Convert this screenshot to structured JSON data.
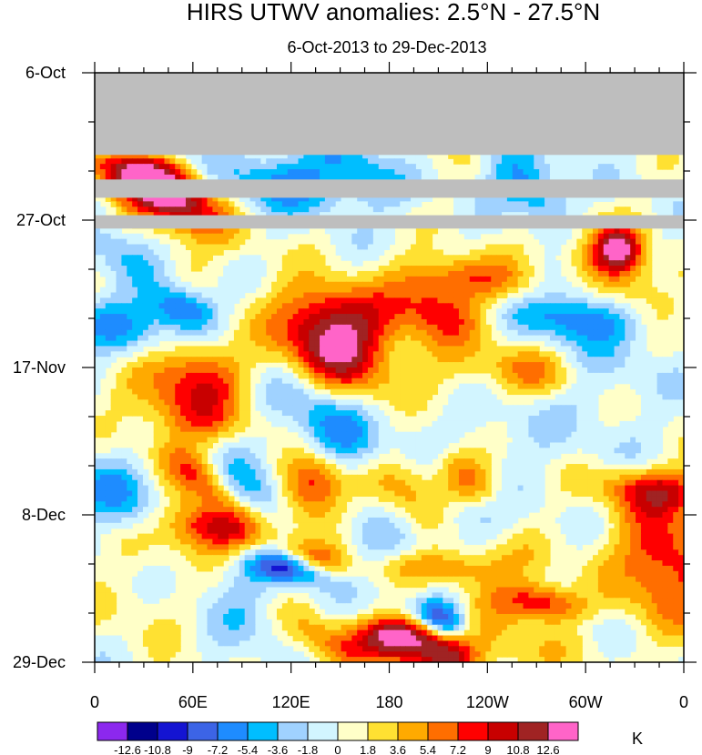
{
  "chart_data": {
    "type": "heatmap",
    "title": "HIRS UTWV anomalies: 2.5°N - 27.5°N",
    "subtitle": "6-Oct-2013 to 29-Dec-2013",
    "xlabel": "",
    "ylabel": "",
    "x_ticks": [
      "0",
      "60E",
      "120E",
      "180",
      "120W",
      "60W",
      "0"
    ],
    "x_range_deg_east": [
      0,
      360
    ],
    "y_ticks": [
      "6-Oct",
      "27-Oct",
      "17-Nov",
      "8-Dec",
      "29-Dec"
    ],
    "y_range_days": [
      0,
      84
    ],
    "missing_data_color": "#bebebe",
    "missing_periods_days": [
      [
        0,
        11.7
      ],
      [
        15.2,
        17.8
      ],
      [
        20.3,
        22.2
      ]
    ],
    "colorbar": {
      "unit": "K",
      "levels": [
        "-12.6",
        "-10.8",
        "-9",
        "-7.2",
        "-5.4",
        "-3.6",
        "-1.8",
        "0",
        "1.8",
        "3.6",
        "5.4",
        "7.2",
        "9",
        "10.8",
        "12.6"
      ],
      "colors": [
        "#8c28ee",
        "#00008c",
        "#1414d2",
        "#3c64e6",
        "#1e8cff",
        "#00beff",
        "#a0d2ff",
        "#d2f5ff",
        "#ffffc8",
        "#ffe132",
        "#ffaa00",
        "#ff6e00",
        "#ff0000",
        "#c80000",
        "#a02323",
        "#ff64c8"
      ]
    }
  }
}
